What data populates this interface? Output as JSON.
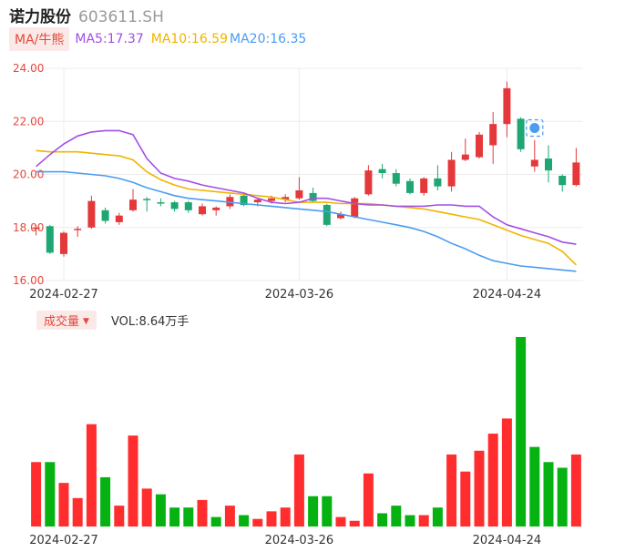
{
  "header": {
    "name": "诺力股份",
    "code": "603611.SH"
  },
  "ma_legend": {
    "label": "MA/牛熊",
    "ma5": "MA5:17.37",
    "ma10": "MA10:16.59",
    "ma20": "MA20:16.35"
  },
  "volume_legend": {
    "label": "成交量",
    "caret": "▼",
    "value": "VOL:8.64万手"
  },
  "colors": {
    "up": "#e5383b",
    "down": "#1ea673",
    "vol_up": "#ff2d2d",
    "vol_down": "#06b212",
    "ma5": "#a24ee6",
    "ma10": "#f0b400",
    "ma20": "#4b9cf0",
    "grid": "#ececec",
    "axis_text": "#e5483b",
    "date_text": "#333333"
  },
  "chart_data": [
    {
      "type": "candlestick",
      "ylim": [
        16.0,
        24.0
      ],
      "y_ticks": [
        "16.00",
        "18.00",
        "20.00",
        "22.00",
        "24.00"
      ],
      "x_labels": [
        {
          "index": 2,
          "text": "2024-02-27"
        },
        {
          "index": 19,
          "text": "2024-03-26"
        },
        {
          "index": 34,
          "text": "2024-04-24"
        }
      ],
      "candles": [
        {
          "o": 17.95,
          "c": 18.0,
          "h": 18.1,
          "l": 17.7
        },
        {
          "o": 18.05,
          "c": 17.05,
          "h": 18.1,
          "l": 17.0
        },
        {
          "o": 17.0,
          "c": 17.8,
          "h": 17.85,
          "l": 16.9
        },
        {
          "o": 17.9,
          "c": 17.95,
          "h": 18.05,
          "l": 17.65
        },
        {
          "o": 18.0,
          "c": 19.0,
          "h": 19.2,
          "l": 17.95
        },
        {
          "o": 18.65,
          "c": 18.25,
          "h": 18.75,
          "l": 18.15
        },
        {
          "o": 18.2,
          "c": 18.45,
          "h": 18.55,
          "l": 18.1
        },
        {
          "o": 18.65,
          "c": 19.05,
          "h": 19.45,
          "l": 18.6
        },
        {
          "o": 19.08,
          "c": 19.05,
          "h": 19.15,
          "l": 18.6
        },
        {
          "o": 18.95,
          "c": 18.9,
          "h": 19.1,
          "l": 18.8
        },
        {
          "o": 18.95,
          "c": 18.7,
          "h": 19.0,
          "l": 18.6
        },
        {
          "o": 18.95,
          "c": 18.65,
          "h": 19.0,
          "l": 18.55
        },
        {
          "o": 18.5,
          "c": 18.8,
          "h": 18.9,
          "l": 18.45
        },
        {
          "o": 18.65,
          "c": 18.75,
          "h": 18.8,
          "l": 18.45
        },
        {
          "o": 18.8,
          "c": 19.15,
          "h": 19.25,
          "l": 18.7
        },
        {
          "o": 19.2,
          "c": 18.85,
          "h": 19.25,
          "l": 18.8
        },
        {
          "o": 18.95,
          "c": 19.05,
          "h": 19.1,
          "l": 18.8
        },
        {
          "o": 19.0,
          "c": 19.1,
          "h": 19.2,
          "l": 18.9
        },
        {
          "o": 19.05,
          "c": 19.15,
          "h": 19.25,
          "l": 18.95
        },
        {
          "o": 19.1,
          "c": 19.4,
          "h": 19.9,
          "l": 19.05
        },
        {
          "o": 19.3,
          "c": 19.0,
          "h": 19.5,
          "l": 18.95
        },
        {
          "o": 18.85,
          "c": 18.1,
          "h": 18.9,
          "l": 18.05
        },
        {
          "o": 18.35,
          "c": 18.5,
          "h": 18.6,
          "l": 18.3
        },
        {
          "o": 18.4,
          "c": 19.1,
          "h": 19.15,
          "l": 18.35
        },
        {
          "o": 19.25,
          "c": 20.15,
          "h": 20.35,
          "l": 19.2
        },
        {
          "o": 20.2,
          "c": 20.05,
          "h": 20.4,
          "l": 19.85
        },
        {
          "o": 20.05,
          "c": 19.65,
          "h": 20.2,
          "l": 19.55
        },
        {
          "o": 19.75,
          "c": 19.3,
          "h": 19.85,
          "l": 19.25
        },
        {
          "o": 19.3,
          "c": 19.85,
          "h": 19.9,
          "l": 19.2
        },
        {
          "o": 19.85,
          "c": 19.55,
          "h": 20.35,
          "l": 19.4
        },
        {
          "o": 19.55,
          "c": 20.55,
          "h": 20.85,
          "l": 19.35
        },
        {
          "o": 20.55,
          "c": 20.75,
          "h": 21.35,
          "l": 20.5
        },
        {
          "o": 20.65,
          "c": 21.5,
          "h": 21.6,
          "l": 20.6
        },
        {
          "o": 21.1,
          "c": 21.9,
          "h": 22.35,
          "l": 20.4
        },
        {
          "o": 21.9,
          "c": 23.25,
          "h": 23.5,
          "l": 21.4
        },
        {
          "o": 22.1,
          "c": 20.95,
          "h": 22.15,
          "l": 20.85
        },
        {
          "o": 20.3,
          "c": 20.55,
          "h": 21.3,
          "l": 20.1
        },
        {
          "o": 20.6,
          "c": 20.15,
          "h": 21.1,
          "l": 19.7
        },
        {
          "o": 19.95,
          "c": 19.6,
          "h": 20.0,
          "l": 19.35
        },
        {
          "o": 19.6,
          "c": 20.45,
          "h": 21.0,
          "l": 19.55
        }
      ],
      "ma5": [
        20.3,
        20.75,
        21.15,
        21.45,
        21.6,
        21.65,
        21.65,
        21.5,
        20.6,
        20.05,
        19.85,
        19.75,
        19.6,
        19.5,
        19.4,
        19.3,
        19.1,
        18.95,
        18.9,
        18.95,
        19.1,
        19.1,
        19.0,
        18.9,
        18.85,
        18.85,
        18.8,
        18.8,
        18.8,
        18.85,
        18.85,
        18.8,
        18.8,
        18.4,
        18.1,
        17.95,
        17.8,
        17.65,
        17.45,
        17.37
      ],
      "ma10": [
        20.9,
        20.85,
        20.85,
        20.85,
        20.8,
        20.75,
        20.7,
        20.55,
        20.1,
        19.8,
        19.6,
        19.45,
        19.4,
        19.35,
        19.3,
        19.25,
        19.2,
        19.15,
        19.05,
        18.95,
        18.95,
        18.95,
        18.9,
        18.9,
        18.9,
        18.85,
        18.8,
        18.75,
        18.7,
        18.6,
        18.5,
        18.4,
        18.3,
        18.1,
        17.9,
        17.7,
        17.55,
        17.4,
        17.1,
        16.59
      ],
      "ma20": [
        20.1,
        20.1,
        20.1,
        20.05,
        20.0,
        19.95,
        19.85,
        19.7,
        19.5,
        19.35,
        19.2,
        19.1,
        19.05,
        19.0,
        18.95,
        18.9,
        18.85,
        18.8,
        18.75,
        18.7,
        18.65,
        18.6,
        18.5,
        18.4,
        18.3,
        18.2,
        18.1,
        18.0,
        17.85,
        17.65,
        17.4,
        17.2,
        16.95,
        16.75,
        16.65,
        16.55,
        16.5,
        16.45,
        16.4,
        16.35
      ]
    },
    {
      "type": "bar",
      "title": "成交量",
      "x_labels": [
        {
          "index": 2,
          "text": "2024-02-27"
        },
        {
          "index": 19,
          "text": "2024-03-26"
        },
        {
          "index": 34,
          "text": "2024-04-24"
        }
      ],
      "ylim": [
        0,
        100
      ],
      "values": [
        34,
        34,
        23,
        15,
        54,
        26,
        11,
        48,
        20,
        17,
        10,
        10,
        14,
        5,
        11,
        6,
        4,
        8,
        10,
        38,
        16,
        16,
        5,
        3,
        28,
        7,
        11,
        6,
        6,
        10,
        38,
        29,
        40,
        49,
        57,
        100,
        42,
        34,
        31,
        38
      ],
      "up": [
        true,
        false,
        true,
        true,
        true,
        false,
        true,
        true,
        true,
        false,
        false,
        false,
        true,
        false,
        true,
        false,
        true,
        true,
        true,
        true,
        false,
        false,
        true,
        true,
        true,
        false,
        false,
        false,
        true,
        false,
        true,
        true,
        true,
        true,
        true,
        false,
        false,
        false,
        false,
        true
      ]
    }
  ]
}
